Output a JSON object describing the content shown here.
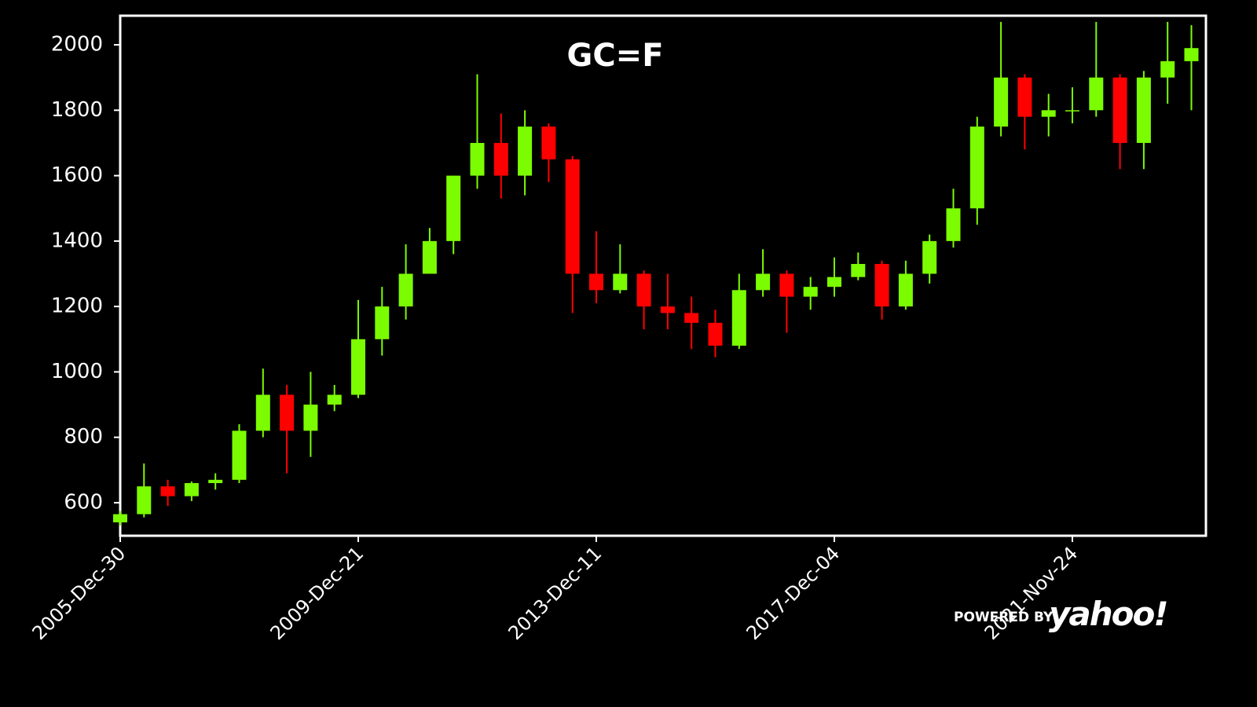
{
  "chart_data": {
    "type": "candlestick",
    "title": "GC=F",
    "categories": [
      "2005-Dec-30",
      null,
      null,
      null,
      null,
      null,
      null,
      null,
      null,
      null,
      "2009-Dec-21",
      null,
      null,
      null,
      null,
      null,
      null,
      null,
      null,
      null,
      "2013-Dec-11",
      null,
      null,
      null,
      null,
      null,
      null,
      null,
      null,
      null,
      "2017-Dec-04",
      null,
      null,
      null,
      null,
      null,
      null,
      null,
      null,
      null,
      "2021-Nov-24",
      null,
      null,
      null,
      null,
      null
    ],
    "open": [
      540,
      565,
      650,
      620,
      660,
      670,
      820,
      930,
      820,
      900,
      930,
      1100,
      1200,
      1300,
      1400,
      1600,
      1700,
      1600,
      1750,
      1650,
      1300,
      1250,
      1300,
      1200,
      1180,
      1150,
      1080,
      1250,
      1300,
      1230,
      1260,
      1290,
      1330,
      1200,
      1300,
      1400,
      1500,
      1750,
      1900,
      1780,
      1800,
      1800,
      1900,
      1700,
      1900,
      1950
    ],
    "high": [
      575,
      720,
      670,
      665,
      690,
      840,
      1010,
      960,
      1000,
      960,
      1220,
      1260,
      1390,
      1440,
      1600,
      1910,
      1790,
      1800,
      1760,
      1660,
      1430,
      1390,
      1310,
      1300,
      1230,
      1190,
      1300,
      1375,
      1310,
      1290,
      1350,
      1365,
      1340,
      1340,
      1420,
      1560,
      1780,
      2070,
      1910,
      1850,
      1870,
      2070,
      1910,
      1920,
      2070,
      2060
    ],
    "low": [
      530,
      555,
      590,
      605,
      640,
      660,
      800,
      690,
      740,
      880,
      920,
      1050,
      1160,
      1300,
      1360,
      1560,
      1530,
      1540,
      1580,
      1180,
      1210,
      1240,
      1130,
      1130,
      1070,
      1045,
      1070,
      1230,
      1120,
      1190,
      1230,
      1280,
      1160,
      1190,
      1270,
      1380,
      1450,
      1720,
      1680,
      1720,
      1760,
      1780,
      1620,
      1620,
      1820,
      1800
    ],
    "close": [
      565,
      650,
      620,
      660,
      670,
      820,
      930,
      820,
      900,
      930,
      1100,
      1200,
      1300,
      1400,
      1600,
      1700,
      1600,
      1750,
      1650,
      1300,
      1250,
      1300,
      1200,
      1180,
      1150,
      1080,
      1250,
      1300,
      1230,
      1260,
      1290,
      1330,
      1200,
      1300,
      1400,
      1500,
      1750,
      1900,
      1780,
      1800,
      1800,
      1900,
      1700,
      1900,
      1950,
      1990
    ],
    "up_color": "#7cfc00",
    "down_color": "#ff0000",
    "ylim": [
      499,
      2089
    ],
    "yticks": [
      600,
      800,
      1000,
      1200,
      1400,
      1600,
      1800,
      2000
    ]
  },
  "watermark": {
    "prefix": "POWERED BY",
    "logo": "yahoo!"
  }
}
